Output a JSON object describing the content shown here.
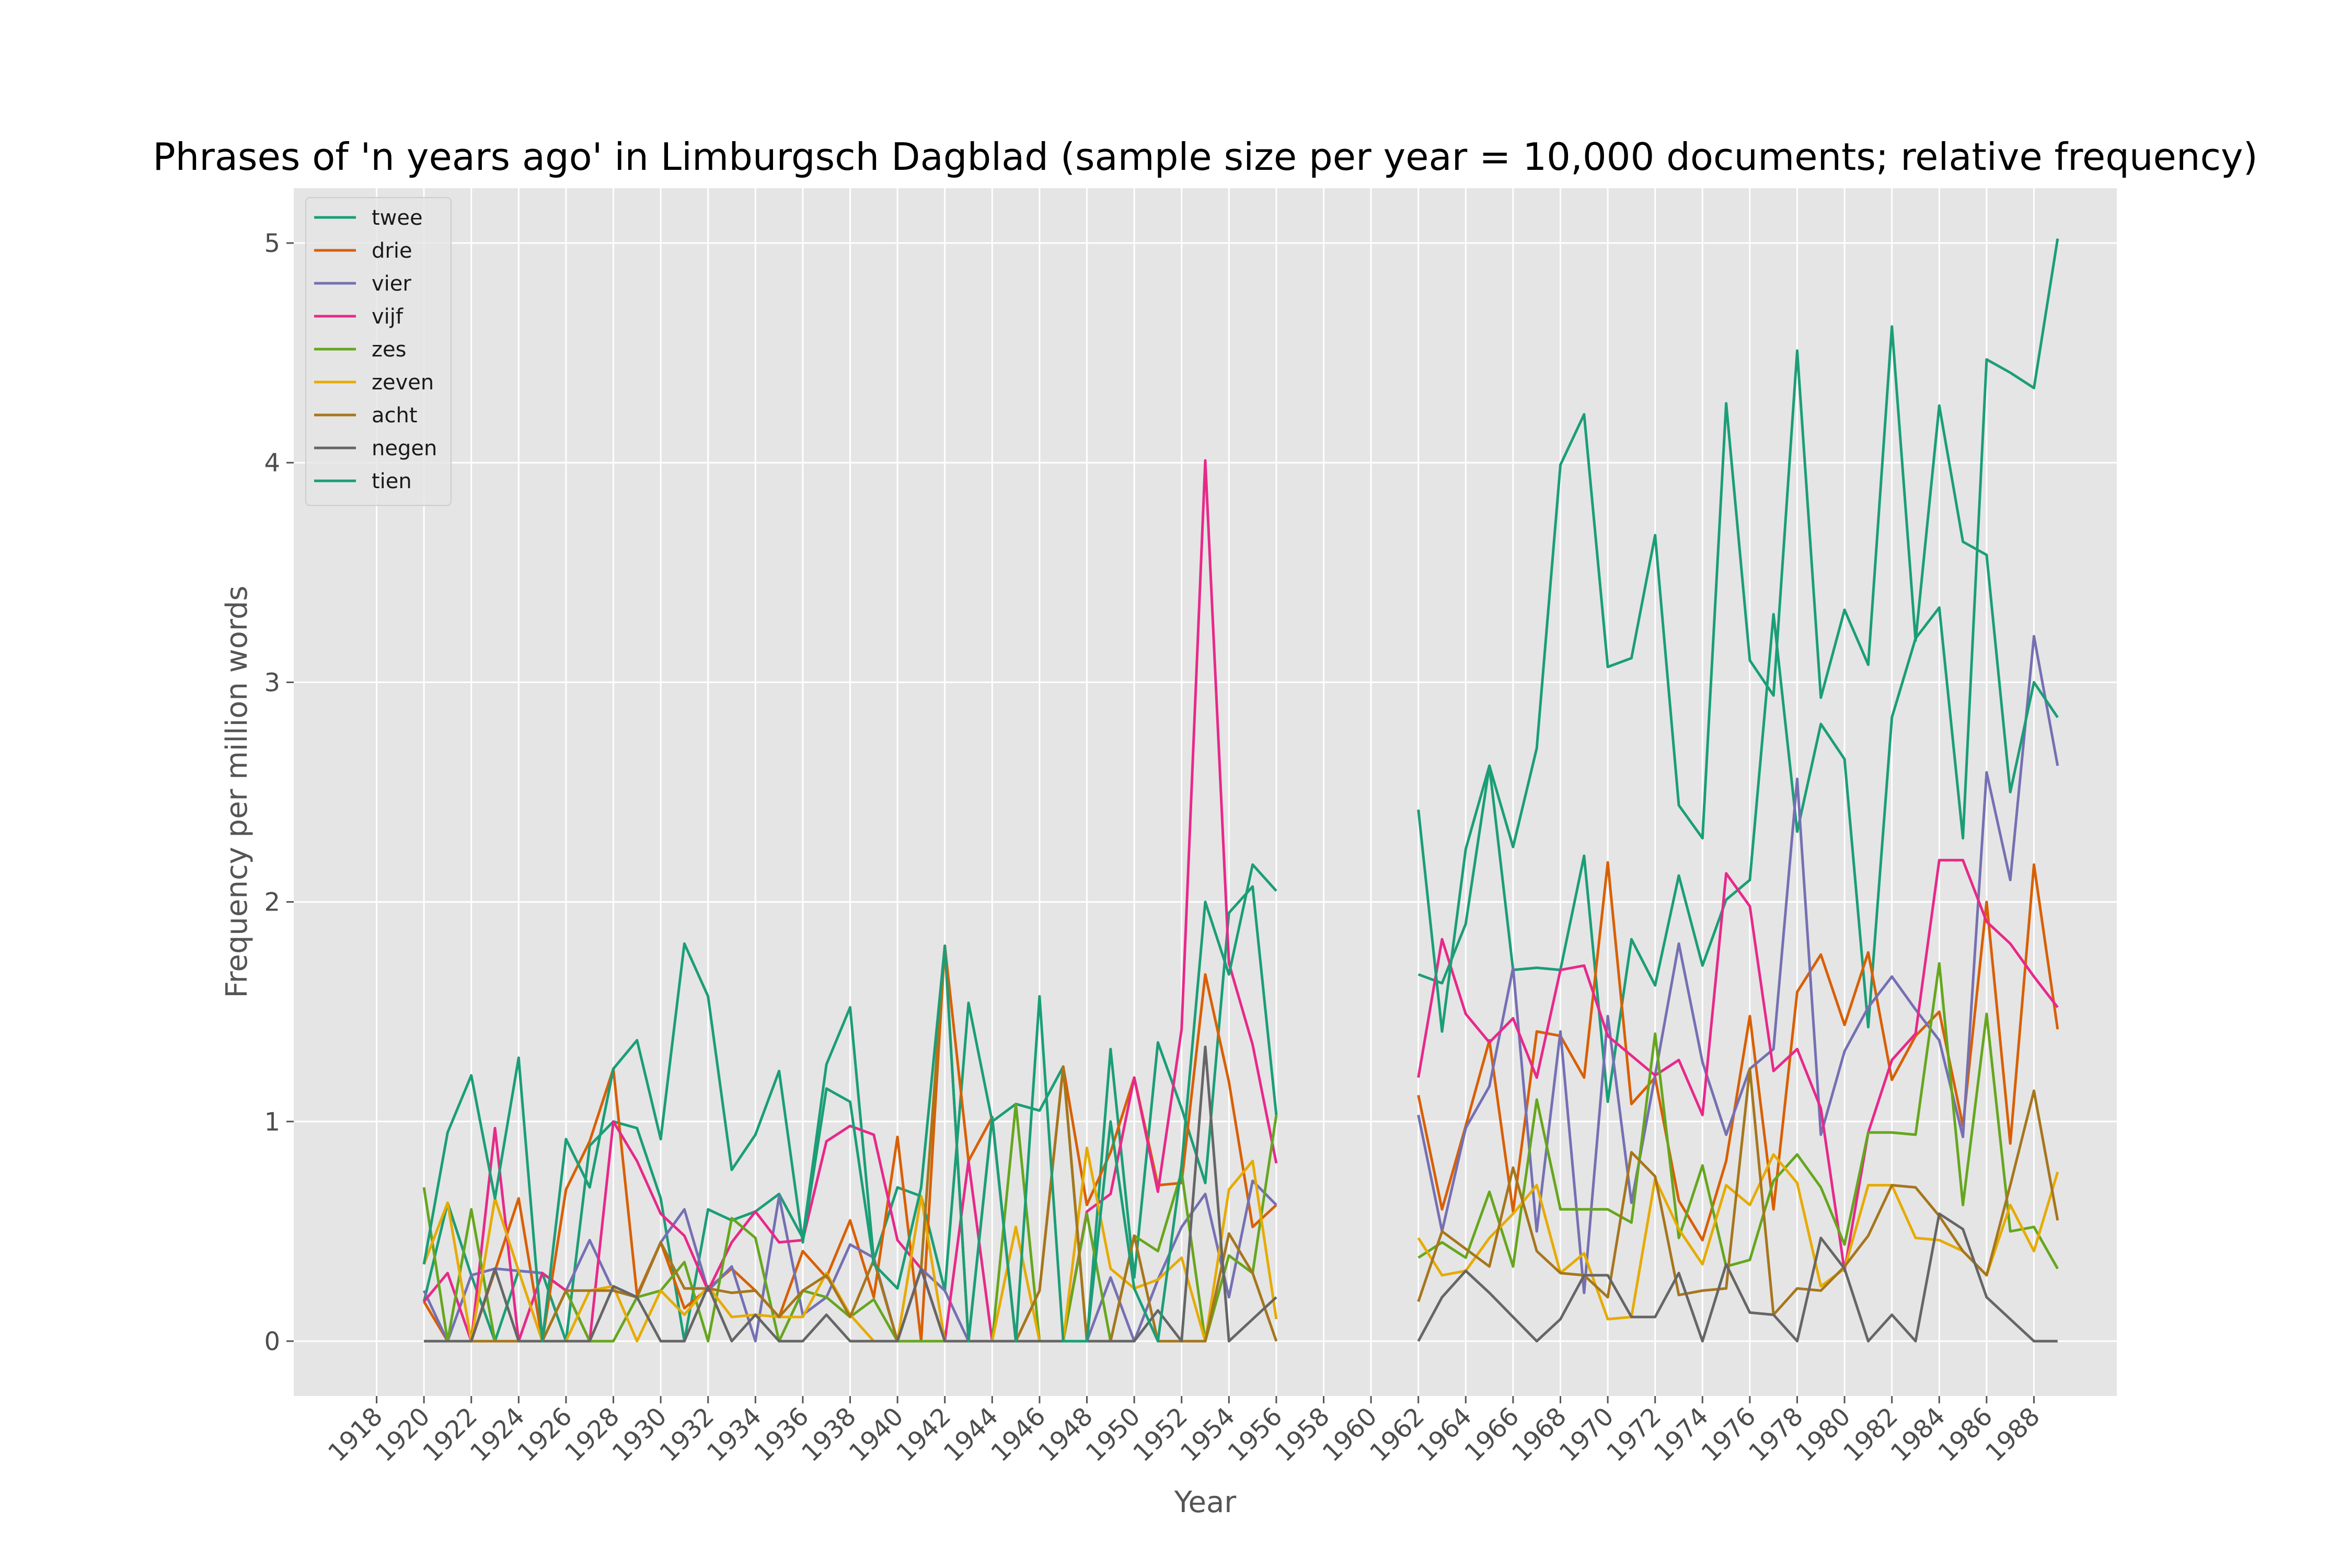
{
  "chart_data": {
    "type": "line",
    "title": "Phrases of 'n years ago' in Limburgsch Dagblad (sample size per year = 10,000 documents; relative frequency)",
    "xlabel": "Year",
    "ylabel": "Frequency per million words",
    "xlim": [
      1914.5,
      1991.5
    ],
    "ylim": [
      -0.25,
      5.25
    ],
    "xticks": [
      1918,
      1920,
      1922,
      1924,
      1926,
      1928,
      1930,
      1932,
      1934,
      1936,
      1938,
      1940,
      1942,
      1944,
      1946,
      1948,
      1950,
      1952,
      1954,
      1956,
      1958,
      1960,
      1962,
      1964,
      1966,
      1968,
      1970,
      1972,
      1974,
      1976,
      1978,
      1980,
      1982,
      1984,
      1986,
      1988
    ],
    "yticks": [
      0,
      1,
      2,
      3,
      4,
      5
    ],
    "grid": true,
    "legend_position": "upper left",
    "x_groups": [
      [
        1920,
        1921,
        1922,
        1923,
        1924,
        1925,
        1926,
        1927,
        1928,
        1929,
        1930,
        1931,
        1932,
        1933,
        1934,
        1935,
        1936,
        1937,
        1938,
        1939,
        1940,
        1941,
        1942,
        1943,
        1944,
        1945,
        1946,
        1947,
        1948,
        1949,
        1950,
        1951,
        1952,
        1953,
        1954,
        1955,
        1956
      ],
      [
        1962,
        1963,
        1964,
        1965,
        1966,
        1967,
        1968,
        1969,
        1970,
        1971,
        1972,
        1973,
        1974,
        1975,
        1976,
        1977,
        1978,
        1979,
        1980,
        1981,
        1982,
        1983,
        1984,
        1985,
        1986,
        1987,
        1988,
        1989
      ]
    ],
    "series": [
      {
        "name": "twee",
        "color": "#1b9e77",
        "values": [
          [
            0.18,
            0.63,
            0.3,
            0.0,
            0.32,
            0.31,
            0.0,
            0.89,
            1.0,
            0.97,
            0.65,
            0.0,
            0.6,
            0.55,
            0.59,
            0.67,
            0.47,
            1.26,
            1.52,
            0.37,
            0.7,
            0.66,
            0.23,
            1.54,
            1.0,
            1.08,
            1.05,
            1.25,
            0.0,
            1.33,
            0.29,
            1.36,
            1.06,
            0.72,
            1.95,
            2.07,
            1.03
          ],
          [
            1.67,
            1.63,
            1.9,
            2.62,
            1.69,
            1.7,
            1.69,
            2.21,
            1.09,
            1.83,
            1.62,
            2.12,
            1.71,
            2.01,
            2.1,
            3.31,
            2.32,
            2.81,
            2.65,
            1.43,
            2.84,
            3.2,
            3.34,
            2.29,
            4.47,
            4.41,
            4.34,
            5.02
          ]
        ]
      },
      {
        "name": "drie",
        "color": "#d95f02",
        "values": [
          [
            0.18,
            0.0,
            0.0,
            0.32,
            0.65,
            0.0,
            0.69,
            0.91,
            1.24,
            0.21,
            0.45,
            0.15,
            0.24,
            0.33,
            0.23,
            0.11,
            0.41,
            0.29,
            0.55,
            0.2,
            0.93,
            0.0,
            1.8,
            0.82,
            1.02,
            0.0,
            0.23,
            1.25,
            0.62,
            0.86,
            1.2,
            0.71,
            0.72,
            1.67,
            1.18,
            0.52,
            0.62
          ],
          [
            1.12,
            0.6,
            0.98,
            1.37,
            0.59,
            1.41,
            1.39,
            1.2,
            2.18,
            1.08,
            1.2,
            0.64,
            0.46,
            0.82,
            1.48,
            0.6,
            1.59,
            1.76,
            1.44,
            1.77,
            1.19,
            1.39,
            1.5,
            0.98,
            2.0,
            0.9,
            2.17,
            1.42
          ]
        ]
      },
      {
        "name": "vier",
        "color": "#7570b3",
        "values": [
          [
            0.23,
            0.0,
            0.3,
            0.33,
            0.32,
            0.31,
            0.23,
            0.46,
            0.23,
            0.2,
            0.45,
            0.6,
            0.23,
            0.34,
            0.0,
            0.66,
            0.12,
            0.2,
            0.44,
            0.38,
            0.0,
            0.33,
            0.23,
            0.0,
            1.02,
            0.0,
            0.0,
            0.0,
            0.0,
            0.29,
            0.0,
            0.28,
            0.52,
            0.67,
            0.2,
            0.73,
            0.62
          ],
          [
            1.03,
            0.5,
            0.97,
            1.16,
            1.7,
            0.5,
            1.41,
            0.22,
            1.48,
            0.63,
            1.21,
            1.81,
            1.27,
            0.94,
            1.24,
            1.33,
            2.56,
            0.94,
            1.32,
            1.52,
            1.66,
            1.51,
            1.37,
            0.93,
            2.59,
            2.1,
            3.21,
            2.62
          ]
        ]
      },
      {
        "name": "vijf",
        "color": "#e7298a",
        "values": [
          [
            0.18,
            0.31,
            0.0,
            0.97,
            0.0,
            0.31,
            0.23,
            0.0,
            1.0,
            0.82,
            0.58,
            0.48,
            0.23,
            0.45,
            0.59,
            0.45,
            0.46,
            0.91,
            0.98,
            0.94,
            0.46,
            0.33,
            0.0,
            0.82,
            0.0,
            0.0,
            0.0,
            0.0,
            0.59,
            0.67,
            1.2,
            0.68,
            1.42,
            4.01,
            1.72,
            1.35,
            0.81
          ],
          [
            1.2,
            1.83,
            1.49,
            1.36,
            1.47,
            1.2,
            1.69,
            1.71,
            1.39,
            1.3,
            1.21,
            1.28,
            1.03,
            2.13,
            1.98,
            1.23,
            1.33,
            1.06,
            0.32,
            0.95,
            1.28,
            1.4,
            2.19,
            2.19,
            1.91,
            1.81,
            1.66,
            1.52
          ]
        ]
      },
      {
        "name": "zes",
        "color": "#66a61e",
        "values": [
          [
            0.7,
            0.0,
            0.6,
            0.0,
            0.0,
            0.0,
            0.23,
            0.0,
            0.0,
            0.2,
            0.23,
            0.36,
            0.0,
            0.56,
            0.47,
            0.0,
            0.23,
            0.2,
            0.11,
            0.19,
            0.0,
            0.0,
            0.0,
            0.0,
            0.0,
            1.08,
            0.0,
            0.0,
            0.58,
            0.0,
            0.48,
            0.41,
            0.77,
            0.0,
            0.39,
            0.31,
            1.03
          ],
          [
            0.38,
            0.45,
            0.38,
            0.68,
            0.34,
            1.1,
            0.6,
            0.6,
            0.6,
            0.54,
            1.4,
            0.47,
            0.8,
            0.34,
            0.37,
            0.73,
            0.85,
            0.7,
            0.44,
            0.95,
            0.95,
            0.94,
            1.72,
            0.62,
            1.49,
            0.5,
            0.52,
            0.33
          ]
        ]
      },
      {
        "name": "zeven",
        "color": "#e6ab02",
        "values": [
          [
            0.35,
            0.63,
            0.0,
            0.65,
            0.32,
            0.0,
            0.0,
            0.23,
            0.25,
            0.0,
            0.23,
            0.12,
            0.25,
            0.11,
            0.12,
            0.11,
            0.11,
            0.31,
            0.12,
            0.0,
            0.0,
            0.66,
            0.0,
            0.0,
            0.0,
            0.52,
            0.0,
            0.0,
            0.88,
            0.33,
            0.24,
            0.28,
            0.38,
            0.0,
            0.69,
            0.82,
            0.1
          ],
          [
            0.47,
            0.3,
            0.32,
            0.47,
            0.58,
            0.71,
            0.31,
            0.4,
            0.1,
            0.11,
            0.74,
            0.51,
            0.35,
            0.71,
            0.62,
            0.85,
            0.72,
            0.25,
            0.33,
            0.71,
            0.71,
            0.47,
            0.46,
            0.41,
            0.3,
            0.62,
            0.41,
            0.77
          ]
        ]
      },
      {
        "name": "acht",
        "color": "#a6761d",
        "values": [
          [
            0.0,
            0.0,
            0.0,
            0.0,
            0.0,
            0.0,
            0.23,
            0.23,
            0.23,
            0.2,
            0.45,
            0.24,
            0.24,
            0.22,
            0.23,
            0.11,
            0.23,
            0.3,
            0.11,
            0.37,
            0.0,
            0.33,
            1.8,
            0.0,
            0.0,
            0.0,
            0.23,
            1.25,
            0.0,
            0.0,
            0.48,
            0.0,
            0.0,
            0.0,
            0.49,
            0.31,
            0.0
          ],
          [
            0.18,
            0.5,
            0.42,
            0.34,
            0.79,
            0.41,
            0.31,
            0.3,
            0.2,
            0.86,
            0.75,
            0.21,
            0.23,
            0.24,
            1.24,
            0.12,
            0.24,
            0.23,
            0.34,
            0.48,
            0.71,
            0.7,
            0.57,
            0.41,
            0.3,
            0.71,
            1.14,
            0.55
          ]
        ]
      },
      {
        "name": "negen",
        "color": "#666666",
        "values": [
          [
            0.0,
            0.0,
            0.0,
            0.33,
            0.0,
            0.0,
            0.0,
            0.0,
            0.25,
            0.2,
            0.0,
            0.0,
            0.25,
            0.0,
            0.12,
            0.0,
            0.0,
            0.12,
            0.0,
            0.0,
            0.0,
            0.33,
            0.0,
            0.0,
            0.0,
            0.0,
            0.0,
            0.0,
            0.0,
            0.0,
            0.0,
            0.14,
            0.0,
            1.34,
            0.0,
            0.1,
            0.2
          ],
          [
            0.0,
            0.2,
            0.32,
            0.22,
            0.11,
            0.0,
            0.1,
            0.3,
            0.3,
            0.11,
            0.11,
            0.31,
            0.0,
            0.35,
            0.13,
            0.12,
            0.0,
            0.47,
            0.33,
            0.0,
            0.12,
            0.0,
            0.58,
            0.51,
            0.2,
            0.1,
            0.0,
            0.0
          ]
        ]
      },
      {
        "name": "tien",
        "color": "#1b9e77",
        "values": [
          [
            0.35,
            0.95,
            1.21,
            0.65,
            1.29,
            0.0,
            0.92,
            0.7,
            1.24,
            1.37,
            0.92,
            1.81,
            1.57,
            0.78,
            0.94,
            1.23,
            0.45,
            1.15,
            1.09,
            0.35,
            0.24,
            0.7,
            1.8,
            0.0,
            1.02,
            0.0,
            1.57,
            0.0,
            0.0,
            1.0,
            0.24,
            0.0,
            0.8,
            2.0,
            1.67,
            2.17,
            2.05
          ],
          [
            2.42,
            1.41,
            2.24,
            2.62,
            2.25,
            2.7,
            3.99,
            4.22,
            3.07,
            3.11,
            3.67,
            2.44,
            2.29,
            4.27,
            3.1,
            2.94,
            4.51,
            2.93,
            3.33,
            3.08,
            4.62,
            3.19,
            4.26,
            3.64,
            3.58,
            2.5,
            3.0,
            2.84
          ]
        ]
      }
    ]
  }
}
